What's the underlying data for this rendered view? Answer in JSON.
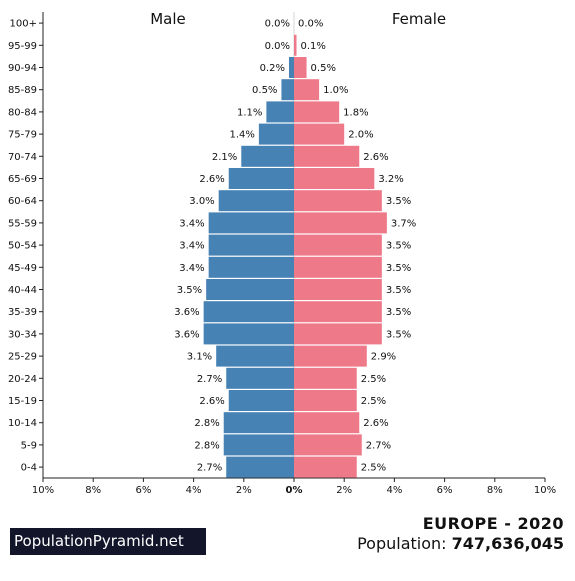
{
  "chart_data": {
    "type": "bar",
    "orientation": "horizontal-population-pyramid",
    "categories": [
      "100+",
      "95-99",
      "90-94",
      "85-89",
      "80-84",
      "75-79",
      "70-74",
      "65-69",
      "60-64",
      "55-59",
      "50-54",
      "45-49",
      "40-44",
      "35-39",
      "30-34",
      "25-29",
      "20-24",
      "15-19",
      "10-14",
      "5-9",
      "0-4"
    ],
    "series": [
      {
        "name": "Male",
        "values": [
          0.0,
          0.0,
          0.2,
          0.5,
          1.1,
          1.4,
          2.1,
          2.6,
          3.0,
          3.4,
          3.4,
          3.4,
          3.5,
          3.6,
          3.6,
          3.1,
          2.7,
          2.6,
          2.8,
          2.8,
          2.7
        ],
        "labels": [
          "0.0%",
          "0.0%",
          "0.2%",
          "0.5%",
          "1.1%",
          "1.4%",
          "2.1%",
          "2.6%",
          "3.0%",
          "3.4%",
          "3.4%",
          "3.4%",
          "3.5%",
          "3.6%",
          "3.6%",
          "3.1%",
          "2.7%",
          "2.6%",
          "2.8%",
          "2.8%",
          "2.7%"
        ],
        "color": "#4682b4"
      },
      {
        "name": "Female",
        "values": [
          0.0,
          0.1,
          0.5,
          1.0,
          1.8,
          2.0,
          2.6,
          3.2,
          3.5,
          3.7,
          3.5,
          3.5,
          3.5,
          3.5,
          3.5,
          2.9,
          2.5,
          2.5,
          2.6,
          2.7,
          2.5
        ],
        "labels": [
          "0.0%",
          "0.1%",
          "0.5%",
          "1.0%",
          "1.8%",
          "2.0%",
          "2.6%",
          "3.2%",
          "3.5%",
          "3.7%",
          "3.5%",
          "3.5%",
          "3.5%",
          "3.5%",
          "3.5%",
          "2.9%",
          "2.5%",
          "2.5%",
          "2.6%",
          "2.7%",
          "2.5%"
        ],
        "color": "#ee7989"
      }
    ],
    "xlim": [
      -10,
      10
    ],
    "xticks": [
      -10,
      -8,
      -6,
      -4,
      -2,
      0,
      2,
      4,
      6,
      8,
      10
    ],
    "xtick_labels": [
      "10%",
      "8%",
      "6%",
      "4%",
      "2%",
      "0%",
      "2%",
      "4%",
      "6%",
      "8%",
      "10%"
    ],
    "left_header": "Male",
    "right_header": "Female",
    "grid": false
  },
  "footer": {
    "brand": "PopulationPyramid.net",
    "region_year": "EUROPE - 2020",
    "population_label": "Population: ",
    "population_value": "747,636,045"
  }
}
